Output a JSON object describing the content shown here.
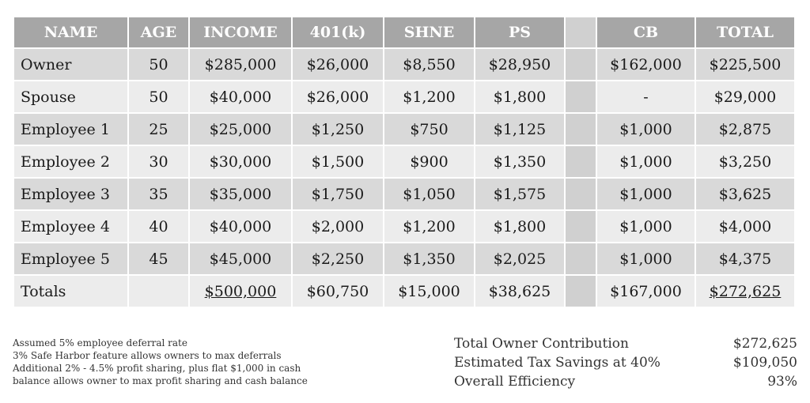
{
  "table": {
    "headers": [
      "NAME",
      "AGE",
      "INCOME",
      "401(k)",
      "SHNE",
      "PS",
      "",
      "CB",
      "TOTAL"
    ],
    "rows": [
      {
        "name": "Owner",
        "age": "50",
        "income": "$285,000",
        "k401": "$26,000",
        "shne": "$8,550",
        "ps": "$28,950",
        "cb": "$162,000",
        "total": "$225,500"
      },
      {
        "name": "Spouse",
        "age": "50",
        "income": "$40,000",
        "k401": "$26,000",
        "shne": "$1,200",
        "ps": "$1,800",
        "cb": "-",
        "total": "$29,000"
      },
      {
        "name": "Employee 1",
        "age": "25",
        "income": "$25,000",
        "k401": "$1,250",
        "shne": "$750",
        "ps": "$1,125",
        "cb": "$1,000",
        "total": "$2,875"
      },
      {
        "name": "Employee 2",
        "age": "30",
        "income": "$30,000",
        "k401": "$1,500",
        "shne": "$900",
        "ps": "$1,350",
        "cb": "$1,000",
        "total": "$3,250"
      },
      {
        "name": "Employee 3",
        "age": "35",
        "income": "$35,000",
        "k401": "$1,750",
        "shne": "$1,050",
        "ps": "$1,575",
        "cb": "$1,000",
        "total": "$3,625"
      },
      {
        "name": "Employee 4",
        "age": "40",
        "income": "$40,000",
        "k401": "$2,000",
        "shne": "$1,200",
        "ps": "$1,800",
        "cb": "$1,000",
        "total": "$4,000"
      },
      {
        "name": "Employee 5",
        "age": "45",
        "income": "$45,000",
        "k401": "$2,250",
        "shne": "$1,350",
        "ps": "$2,025",
        "cb": "$1,000",
        "total": "$4,375"
      }
    ],
    "totals": {
      "name": "Totals",
      "age": "",
      "income": "$500,000",
      "k401": "$60,750",
      "shne": "$15,000",
      "ps": "$38,625",
      "cb": "$167,000",
      "total": "$272,625"
    }
  },
  "notes": [
    "Assumed 5% employee deferral rate",
    "3% Safe Harbor feature allows owners to max deferrals",
    "Additional 2% - 4.5% profit sharing, plus flat $1,000 in cash",
    "balance allows owner to max profit sharing and cash balance"
  ],
  "summary": [
    {
      "label": "Total Owner Contribution",
      "value": "$272,625"
    },
    {
      "label": "Estimated Tax Savings at 40%",
      "value": "$109,050"
    },
    {
      "label": "Overall Efficiency",
      "value": "93%"
    }
  ]
}
